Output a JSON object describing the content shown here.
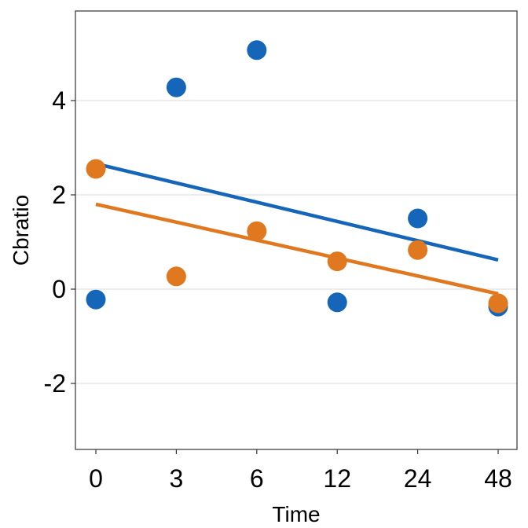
{
  "chart_data": {
    "type": "scatter",
    "title": "",
    "xlabel": "Time",
    "ylabel": "Cbratio",
    "categories": [
      "0",
      "3",
      "6",
      "12",
      "24",
      "48"
    ],
    "y_ticks": [
      -2,
      0,
      2,
      4
    ],
    "y_tick_labels": [
      "-2",
      "0",
      "2",
      "4"
    ],
    "ylim": [
      -3.4,
      5.9
    ],
    "grid": "horizontal major gridlines",
    "legend": "none",
    "series": [
      {
        "color": "#1565b8",
        "values": [
          -0.22,
          4.28,
          5.07,
          -0.28,
          1.5,
          -0.37
        ],
        "trend": {
          "start": 2.66,
          "end": 0.62
        }
      },
      {
        "color": "#e07820",
        "values": [
          2.55,
          0.27,
          1.23,
          0.59,
          0.83,
          -0.3
        ],
        "trend": {
          "start": 1.8,
          "end": -0.1
        }
      }
    ]
  }
}
